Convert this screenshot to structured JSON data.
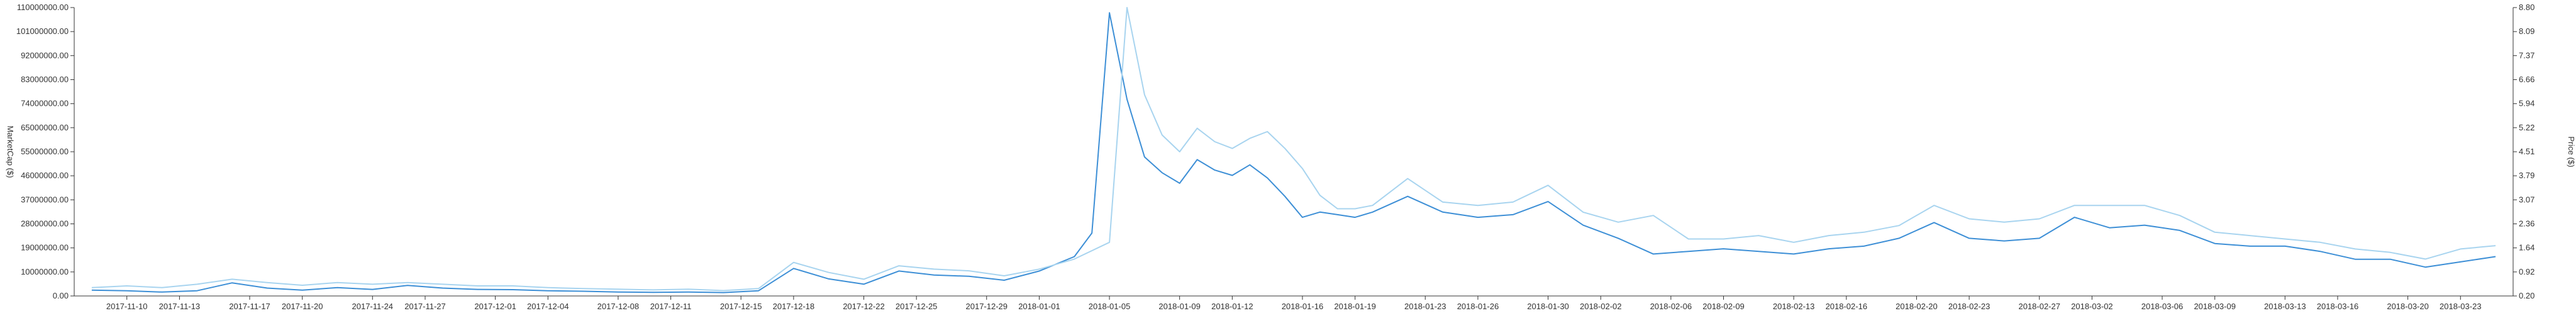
{
  "chart_data": {
    "type": "line",
    "x_axis": {
      "tick_labels": [
        "2017-11-10",
        "2017-11-13",
        "2017-11-17",
        "2017-11-20",
        "2017-11-24",
        "2017-11-27",
        "2017-12-01",
        "2017-12-04",
        "2017-12-08",
        "2017-12-11",
        "2017-12-15",
        "2017-12-18",
        "2017-12-22",
        "2017-12-25",
        "2017-12-29",
        "2018-01-01",
        "2018-01-05",
        "2018-01-09",
        "2018-01-12",
        "2018-01-16",
        "2018-01-19",
        "2018-01-23",
        "2018-01-26",
        "2018-01-30",
        "2018-02-02",
        "2018-02-06",
        "2018-02-09",
        "2018-02-13",
        "2018-02-16",
        "2018-02-20",
        "2018-02-23",
        "2018-02-27",
        "2018-03-02",
        "2018-03-06",
        "2018-03-09",
        "2018-03-13",
        "2018-03-16",
        "2018-03-20",
        "2018-03-23"
      ]
    },
    "y_left": {
      "label": "MarketCap ($)",
      "range": [
        0,
        110000000
      ],
      "tick_labels": [
        "0.00",
        "10000000.00",
        "19000000.00",
        "28000000.00",
        "37000000.00",
        "46000000.00",
        "55000000.00",
        "65000000.00",
        "74000000.00",
        "83000000.00",
        "92000000.00",
        "101000000.00",
        "110000000.00"
      ]
    },
    "y_right": {
      "label": "Price ($)",
      "range": [
        0.2,
        8.8
      ],
      "tick_labels": [
        "0.20",
        "0.92",
        "1.64",
        "2.36",
        "3.07",
        "3.79",
        "4.51",
        "5.22",
        "5.94",
        "6.66",
        "7.37",
        "8.09",
        "8.80"
      ]
    },
    "grid": false,
    "series": [
      {
        "axis": "left",
        "color": "#3d8fd6",
        "x": [
          "2017-11-08",
          "2017-11-10",
          "2017-11-12",
          "2017-11-14",
          "2017-11-16",
          "2017-11-18",
          "2017-11-20",
          "2017-11-22",
          "2017-11-24",
          "2017-11-26",
          "2017-11-28",
          "2017-11-30",
          "2017-12-02",
          "2017-12-04",
          "2017-12-06",
          "2017-12-08",
          "2017-12-10",
          "2017-12-12",
          "2017-12-14",
          "2017-12-16",
          "2017-12-18",
          "2017-12-20",
          "2017-12-22",
          "2017-12-24",
          "2017-12-26",
          "2017-12-28",
          "2017-12-30",
          "2018-01-01",
          "2018-01-03",
          "2018-01-04",
          "2018-01-05",
          "2018-01-06",
          "2018-01-07",
          "2018-01-08",
          "2018-01-09",
          "2018-01-10",
          "2018-01-11",
          "2018-01-12",
          "2018-01-13",
          "2018-01-14",
          "2018-01-15",
          "2018-01-16",
          "2018-01-17",
          "2018-01-18",
          "2018-01-19",
          "2018-01-20",
          "2018-01-22",
          "2018-01-24",
          "2018-01-26",
          "2018-01-28",
          "2018-01-30",
          "2018-02-01",
          "2018-02-03",
          "2018-02-05",
          "2018-02-07",
          "2018-02-09",
          "2018-02-11",
          "2018-02-13",
          "2018-02-15",
          "2018-02-17",
          "2018-02-19",
          "2018-02-21",
          "2018-02-23",
          "2018-02-25",
          "2018-02-27",
          "2018-03-01",
          "2018-03-03",
          "2018-03-05",
          "2018-03-07",
          "2018-03-09",
          "2018-03-11",
          "2018-03-13",
          "2018-03-15",
          "2018-03-17",
          "2018-03-19",
          "2018-03-21",
          "2018-03-23",
          "2018-03-25"
        ],
        "values": [
          2200000,
          2000000,
          1500000,
          2000000,
          5000000,
          3000000,
          2200000,
          3200000,
          2500000,
          4000000,
          3000000,
          2500000,
          2400000,
          2000000,
          1800000,
          1500000,
          1400000,
          1500000,
          1300000,
          2000000,
          10500000,
          6500000,
          4500000,
          9500000,
          8000000,
          7500000,
          6000000,
          9500000,
          15000000,
          24000000,
          108000000,
          75000000,
          53000000,
          47000000,
          43000000,
          52000000,
          48000000,
          46000000,
          50000000,
          45000000,
          38000000,
          30000000,
          32000000,
          31000000,
          30000000,
          32000000,
          38000000,
          32000000,
          30000000,
          31000000,
          36000000,
          27000000,
          22000000,
          16000000,
          17000000,
          18000000,
          17000000,
          16000000,
          18000000,
          19000000,
          22000000,
          28000000,
          22000000,
          21000000,
          22000000,
          30000000,
          26000000,
          27000000,
          25000000,
          20000000,
          19000000,
          19000000,
          17000000,
          14000000,
          14000000,
          11000000,
          13000000,
          15000000
        ]
      },
      {
        "axis": "right",
        "color": "#a8d4ef",
        "x": [
          "2017-11-08",
          "2017-11-10",
          "2017-11-12",
          "2017-11-14",
          "2017-11-16",
          "2017-11-18",
          "2017-11-20",
          "2017-11-22",
          "2017-11-24",
          "2017-11-26",
          "2017-11-28",
          "2017-11-30",
          "2017-12-02",
          "2017-12-04",
          "2017-12-06",
          "2017-12-08",
          "2017-12-10",
          "2017-12-12",
          "2017-12-14",
          "2017-12-16",
          "2017-12-18",
          "2017-12-20",
          "2017-12-22",
          "2017-12-24",
          "2017-12-26",
          "2017-12-28",
          "2017-12-30",
          "2018-01-01",
          "2018-01-03",
          "2018-01-05",
          "2018-01-06",
          "2018-01-07",
          "2018-01-08",
          "2018-01-09",
          "2018-01-10",
          "2018-01-11",
          "2018-01-12",
          "2018-01-13",
          "2018-01-14",
          "2018-01-15",
          "2018-01-16",
          "2018-01-17",
          "2018-01-18",
          "2018-01-19",
          "2018-01-20",
          "2018-01-22",
          "2018-01-24",
          "2018-01-26",
          "2018-01-28",
          "2018-01-30",
          "2018-02-01",
          "2018-02-03",
          "2018-02-05",
          "2018-02-07",
          "2018-02-09",
          "2018-02-11",
          "2018-02-13",
          "2018-02-15",
          "2018-02-17",
          "2018-02-19",
          "2018-02-21",
          "2018-02-23",
          "2018-02-25",
          "2018-02-27",
          "2018-03-01",
          "2018-03-03",
          "2018-03-05",
          "2018-03-07",
          "2018-03-09",
          "2018-03-11",
          "2018-03-13",
          "2018-03-15",
          "2018-03-17",
          "2018-03-19",
          "2018-03-21",
          "2018-03-23",
          "2018-03-25"
        ],
        "values": [
          0.45,
          0.5,
          0.45,
          0.55,
          0.7,
          0.6,
          0.52,
          0.6,
          0.55,
          0.6,
          0.55,
          0.5,
          0.5,
          0.45,
          0.42,
          0.4,
          0.38,
          0.4,
          0.36,
          0.42,
          1.2,
          0.9,
          0.7,
          1.1,
          1.0,
          0.95,
          0.8,
          1.0,
          1.3,
          1.8,
          8.8,
          6.2,
          5.0,
          4.5,
          5.2,
          4.8,
          4.6,
          4.9,
          5.1,
          4.6,
          4.0,
          3.2,
          2.8,
          2.8,
          2.9,
          3.7,
          3.0,
          2.9,
          3.0,
          3.5,
          2.7,
          2.4,
          2.6,
          1.9,
          1.9,
          2.0,
          1.8,
          2.0,
          2.1,
          2.3,
          2.9,
          2.5,
          2.4,
          2.5,
          2.9,
          2.9,
          2.9,
          2.6,
          2.1,
          2.0,
          1.9,
          1.8,
          1.6,
          1.5,
          1.3,
          1.6,
          1.7
        ]
      }
    ]
  }
}
